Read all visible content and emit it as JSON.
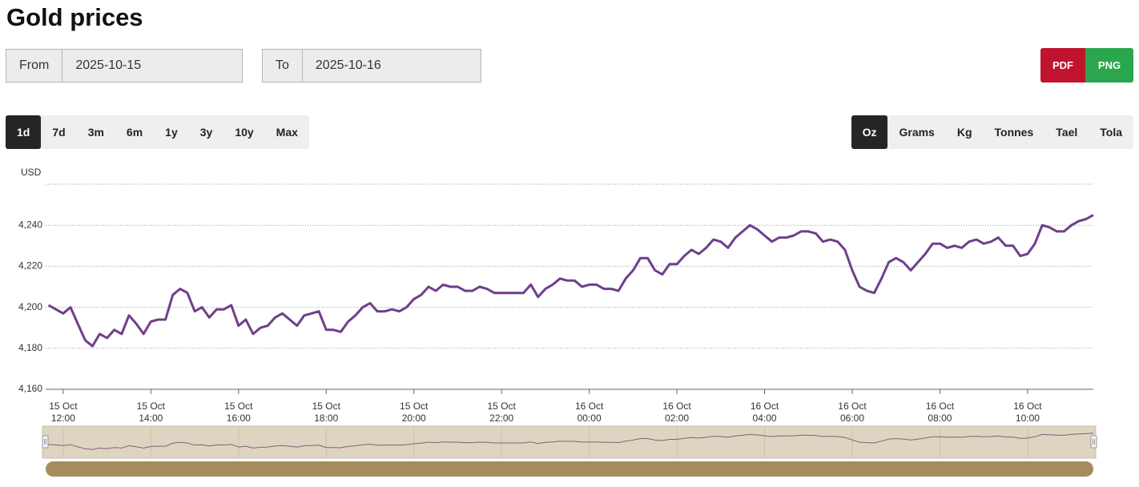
{
  "header": {
    "title": "Gold prices"
  },
  "date_range": {
    "from_label": "From",
    "from_value": "2025-10-15",
    "to_label": "To",
    "to_value": "2025-10-16"
  },
  "export_buttons": [
    "PDF",
    "PNG"
  ],
  "range_buttons": {
    "items": [
      "1d",
      "7d",
      "3m",
      "6m",
      "1y",
      "3y",
      "10y",
      "Max"
    ],
    "active": 0
  },
  "unit_buttons": {
    "items": [
      "Oz",
      "Grams",
      "Kg",
      "Tonnes",
      "Tael",
      "Tola"
    ],
    "active": 0
  },
  "chart_data": {
    "type": "line",
    "y_label": "USD",
    "color": "#6e3f8b",
    "xlim": [
      "15 Oct 11:36",
      "16 Oct 11:30"
    ],
    "xticks": [
      "15 Oct 12:00",
      "15 Oct 14:00",
      "15 Oct 16:00",
      "15 Oct 18:00",
      "15 Oct 20:00",
      "15 Oct 22:00",
      "16 Oct 00:00",
      "16 Oct 02:00",
      "16 Oct 04:00",
      "16 Oct 06:00",
      "16 Oct 08:00",
      "16 Oct 10:00"
    ],
    "ylim": [
      4160,
      4260
    ],
    "yticks": [
      {
        "value": 4160,
        "label": "4,160"
      },
      {
        "value": 4180,
        "label": "4,180"
      },
      {
        "value": 4200,
        "label": "4,200"
      },
      {
        "value": 4220,
        "label": "4,220"
      },
      {
        "value": 4240,
        "label": "4,240"
      }
    ],
    "grid": true,
    "x": [
      "15 Oct 11:40",
      "15 Oct 11:50",
      "15 Oct 12:00",
      "15 Oct 12:10",
      "15 Oct 12:20",
      "15 Oct 12:30",
      "15 Oct 12:40",
      "15 Oct 12:50",
      "15 Oct 13:00",
      "15 Oct 13:10",
      "15 Oct 13:20",
      "15 Oct 13:30",
      "15 Oct 13:40",
      "15 Oct 13:50",
      "15 Oct 14:00",
      "15 Oct 14:10",
      "15 Oct 14:20",
      "15 Oct 14:30",
      "15 Oct 14:40",
      "15 Oct 14:50",
      "15 Oct 15:00",
      "15 Oct 15:10",
      "15 Oct 15:20",
      "15 Oct 15:30",
      "15 Oct 15:40",
      "15 Oct 15:50",
      "15 Oct 16:00",
      "15 Oct 16:10",
      "15 Oct 16:20",
      "15 Oct 16:30",
      "15 Oct 16:40",
      "15 Oct 16:50",
      "15 Oct 17:00",
      "15 Oct 17:10",
      "15 Oct 17:20",
      "15 Oct 17:30",
      "15 Oct 17:40",
      "15 Oct 17:50",
      "15 Oct 18:00",
      "15 Oct 18:10",
      "15 Oct 18:20",
      "15 Oct 18:30",
      "15 Oct 18:40",
      "15 Oct 18:50",
      "15 Oct 19:00",
      "15 Oct 19:10",
      "15 Oct 19:20",
      "15 Oct 19:30",
      "15 Oct 19:40",
      "15 Oct 19:50",
      "15 Oct 20:00",
      "15 Oct 20:10",
      "15 Oct 20:20",
      "15 Oct 20:30",
      "15 Oct 20:40",
      "15 Oct 20:50",
      "15 Oct 21:00",
      "15 Oct 21:10",
      "15 Oct 21:20",
      "15 Oct 21:30",
      "15 Oct 21:40",
      "15 Oct 21:50",
      "15 Oct 22:00",
      "15 Oct 22:10",
      "15 Oct 22:20",
      "15 Oct 22:30",
      "15 Oct 22:40",
      "15 Oct 22:50",
      "15 Oct 23:00",
      "15 Oct 23:10",
      "15 Oct 23:20",
      "15 Oct 23:30",
      "15 Oct 23:40",
      "15 Oct 23:50",
      "16 Oct 00:00",
      "16 Oct 00:10",
      "16 Oct 00:20",
      "16 Oct 00:30",
      "16 Oct 00:40",
      "16 Oct 00:50",
      "16 Oct 01:00",
      "16 Oct 01:10",
      "16 Oct 01:20",
      "16 Oct 01:30",
      "16 Oct 01:40",
      "16 Oct 01:50",
      "16 Oct 02:00",
      "16 Oct 02:10",
      "16 Oct 02:20",
      "16 Oct 02:30",
      "16 Oct 02:40",
      "16 Oct 02:50",
      "16 Oct 03:00",
      "16 Oct 03:10",
      "16 Oct 03:20",
      "16 Oct 03:30",
      "16 Oct 03:40",
      "16 Oct 03:50",
      "16 Oct 04:00",
      "16 Oct 04:10",
      "16 Oct 04:20",
      "16 Oct 04:30",
      "16 Oct 04:40",
      "16 Oct 04:50",
      "16 Oct 05:00",
      "16 Oct 05:10",
      "16 Oct 05:20",
      "16 Oct 05:30",
      "16 Oct 05:40",
      "16 Oct 05:50",
      "16 Oct 06:00",
      "16 Oct 06:10",
      "16 Oct 06:20",
      "16 Oct 06:30",
      "16 Oct 06:40",
      "16 Oct 06:50",
      "16 Oct 07:00",
      "16 Oct 07:10",
      "16 Oct 07:20",
      "16 Oct 07:30",
      "16 Oct 07:40",
      "16 Oct 07:50",
      "16 Oct 08:00",
      "16 Oct 08:10",
      "16 Oct 08:20",
      "16 Oct 08:30",
      "16 Oct 08:40",
      "16 Oct 08:50",
      "16 Oct 09:00",
      "16 Oct 09:10",
      "16 Oct 09:20",
      "16 Oct 09:30",
      "16 Oct 09:40",
      "16 Oct 09:50",
      "16 Oct 10:00",
      "16 Oct 10:10",
      "16 Oct 10:20",
      "16 Oct 10:30",
      "16 Oct 10:40",
      "16 Oct 10:50",
      "16 Oct 11:00",
      "16 Oct 11:10",
      "16 Oct 11:20",
      "16 Oct 11:30"
    ],
    "values": [
      4201,
      4199,
      4197,
      4200,
      4192,
      4184,
      4181,
      4187,
      4185,
      4189,
      4187,
      4196,
      4192,
      4187,
      4193,
      4194,
      4194,
      4206,
      4209,
      4207,
      4198,
      4200,
      4195,
      4199,
      4199,
      4201,
      4191,
      4194,
      4187,
      4190,
      4191,
      4195,
      4197,
      4194,
      4191,
      4196,
      4197,
      4198,
      4189,
      4189,
      4188,
      4193,
      4196,
      4200,
      4202,
      4198,
      4198,
      4199,
      4198,
      4200,
      4204,
      4206,
      4210,
      4208,
      4211,
      4210,
      4210,
      4208,
      4208,
      4210,
      4209,
      4207,
      4207,
      4207,
      4207,
      4207,
      4211,
      4205,
      4209,
      4211,
      4214,
      4213,
      4213,
      4210,
      4211,
      4211,
      4209,
      4209,
      4208,
      4214,
      4218,
      4224,
      4224,
      4218,
      4216,
      4221,
      4221,
      4225,
      4228,
      4226,
      4229,
      4233,
      4232,
      4229,
      4234,
      4237,
      4240,
      4238,
      4235,
      4232,
      4234,
      4234,
      4235,
      4237,
      4237,
      4236,
      4232,
      4233,
      4232,
      4228,
      4218,
      4210,
      4208,
      4207,
      4214,
      4222,
      4224,
      4222,
      4218,
      4222,
      4226,
      4231,
      4231,
      4229,
      4230,
      4229,
      4232,
      4233,
      4231,
      4232,
      4234,
      4230,
      4230,
      4225,
      4226,
      4231,
      4240,
      4239,
      4237,
      4237,
      4240,
      4242,
      4243,
      4245
    ]
  }
}
